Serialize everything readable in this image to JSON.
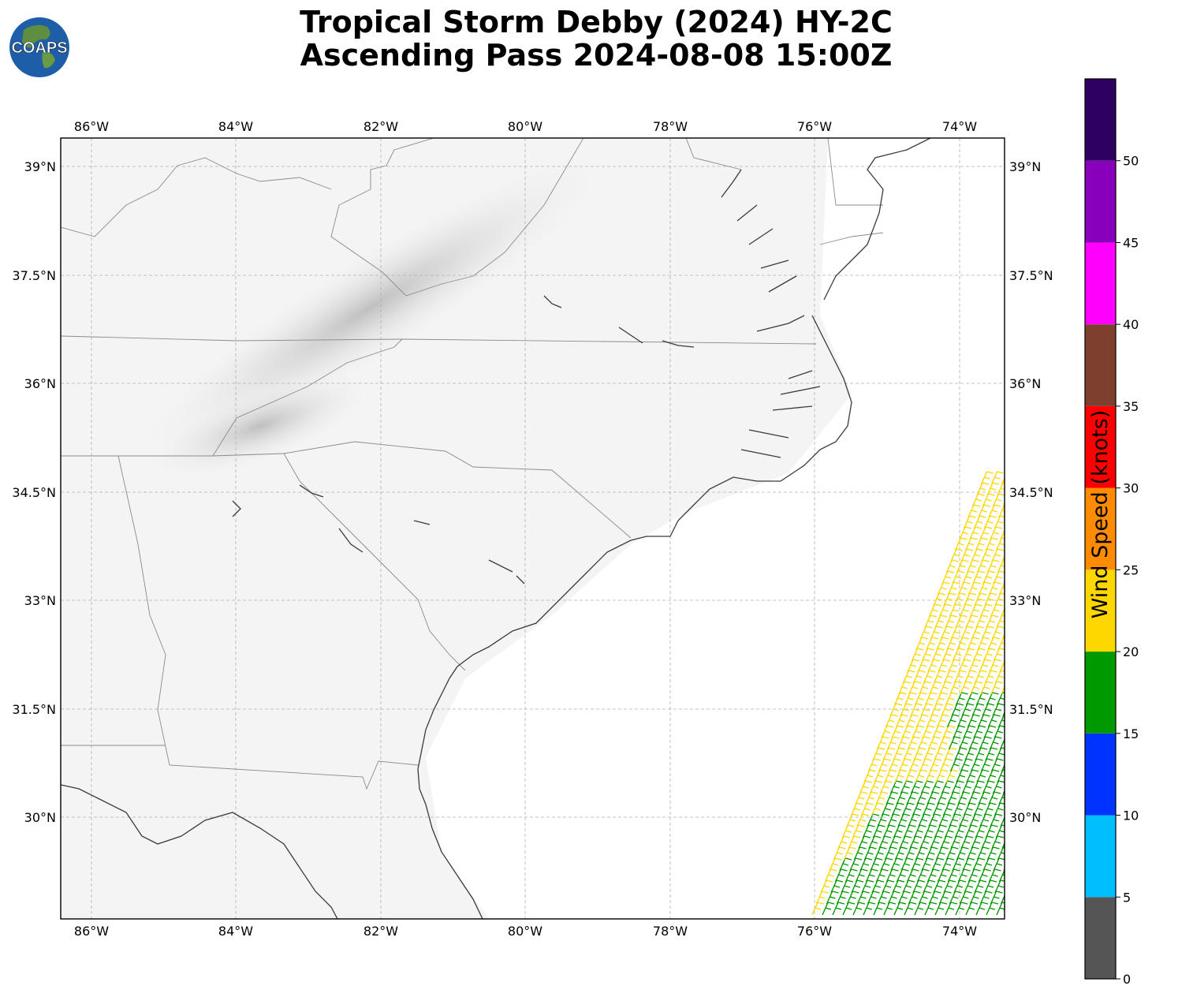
{
  "title": {
    "line1": "Tropical Storm Debby (2024) HY-2C",
    "line2": "Ascending Pass 2024-08-08 15:00Z"
  },
  "logo": {
    "text": "COAPS"
  },
  "map": {
    "projection": "PlateCarree",
    "lon_range": [
      -86.4,
      -73.4
    ],
    "lat_range": [
      28.6,
      39.4
    ],
    "gridlines": true,
    "lon_ticks": [
      "86°W",
      "84°W",
      "82°W",
      "80°W",
      "78°W",
      "76°W",
      "74°W"
    ],
    "lat_ticks": [
      "39°N",
      "37.5°N",
      "36°N",
      "34.5°N",
      "33°N",
      "31.5°N",
      "30°N"
    ],
    "background": "grayscale topography"
  },
  "colorbar": {
    "label": "Wind Speed (knots)",
    "ticks": [
      "0",
      "5",
      "10",
      "15",
      "20",
      "25",
      "30",
      "35",
      "40",
      "45",
      "50"
    ],
    "bins": [
      {
        "min": 0,
        "max": 5,
        "color": "#555555"
      },
      {
        "min": 5,
        "max": 10,
        "color": "#00bfff"
      },
      {
        "min": 10,
        "max": 15,
        "color": "#0033ff"
      },
      {
        "min": 15,
        "max": 20,
        "color": "#009900"
      },
      {
        "min": 20,
        "max": 25,
        "color": "#ffd700"
      },
      {
        "min": 25,
        "max": 30,
        "color": "#ff8c00"
      },
      {
        "min": 30,
        "max": 35,
        "color": "#ff0000"
      },
      {
        "min": 35,
        "max": 40,
        "color": "#7f3f2f"
      },
      {
        "min": 40,
        "max": 45,
        "color": "#ff00ff"
      },
      {
        "min": 45,
        "max": 50,
        "color": "#8800bb"
      },
      {
        "min": 50,
        "max": 55,
        "color": "#2e0060"
      }
    ]
  },
  "wind_barbs": {
    "swath_note": "",
    "green_speed_knots": 15,
    "yellow_speed_knots": 20
  }
}
